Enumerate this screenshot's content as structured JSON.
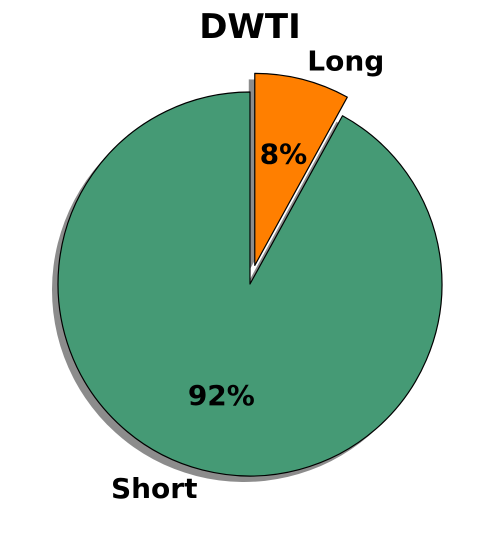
{
  "chart_data": {
    "type": "pie",
    "title": "DWTI",
    "slices": [
      {
        "label": "Long",
        "value": 8,
        "display": "8%",
        "color": "#ff7f00",
        "exploded": true
      },
      {
        "label": "Short",
        "value": 92,
        "display": "92%",
        "color": "#459a75",
        "exploded": false
      }
    ],
    "shadow": true,
    "start_angle_deg": 90,
    "direction": "clockwise"
  }
}
